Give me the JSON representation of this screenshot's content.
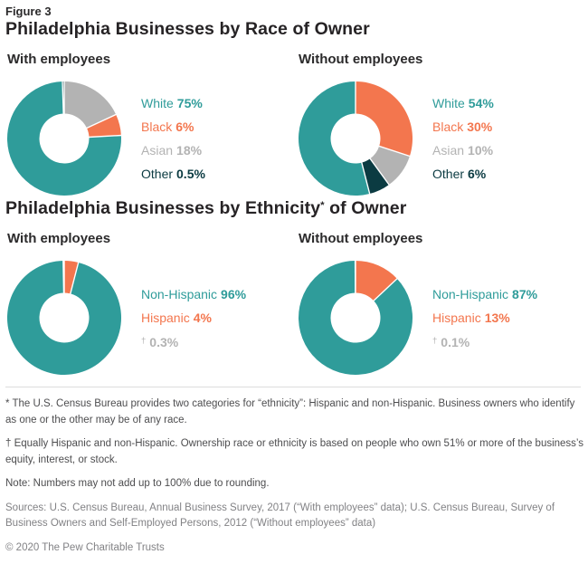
{
  "figure_label": "Figure 3",
  "palette": {
    "teal": "#2F9C9A",
    "orange": "#F3764E",
    "gray": "#B3B3B3",
    "dark": "#0B3B42"
  },
  "sections": {
    "race": {
      "title": "Philadelphia Businesses by Race of Owner"
    },
    "ethnicity": {
      "title_main": "Philadelphia Businesses by Ethnicity",
      "title_sup": "*",
      "title_rest": " of Owner"
    }
  },
  "chart_data": [
    {
      "type": "pie",
      "group": "race",
      "title": "With employees",
      "legend": [
        {
          "label": "White",
          "value": "75%",
          "color": "teal"
        },
        {
          "label": "Black",
          "value": "6%",
          "color": "orange"
        },
        {
          "label": "Asian",
          "value": "18%",
          "color": "gray"
        },
        {
          "label": "Other",
          "value": "0.5%",
          "color": "dark"
        }
      ],
      "slices": [
        {
          "label": "Asian",
          "value": 18,
          "color": "gray"
        },
        {
          "label": "Black",
          "value": 6,
          "color": "orange"
        },
        {
          "label": "White",
          "value": 75,
          "color": "teal"
        },
        {
          "label": "Other",
          "value": 0.5,
          "color": "dark"
        }
      ]
    },
    {
      "type": "pie",
      "group": "race",
      "title": "Without employees",
      "legend": [
        {
          "label": "White",
          "value": "54%",
          "color": "teal"
        },
        {
          "label": "Black",
          "value": "30%",
          "color": "orange"
        },
        {
          "label": "Asian",
          "value": "10%",
          "color": "gray"
        },
        {
          "label": "Other",
          "value": "6%",
          "color": "dark"
        }
      ],
      "slices": [
        {
          "label": "Black",
          "value": 30,
          "color": "orange"
        },
        {
          "label": "Asian",
          "value": 10,
          "color": "gray"
        },
        {
          "label": "Other",
          "value": 6,
          "color": "dark"
        },
        {
          "label": "White",
          "value": 54,
          "color": "teal"
        }
      ]
    },
    {
      "type": "pie",
      "group": "ethnicity",
      "title": "With employees",
      "legend": [
        {
          "label": "Non-Hispanic",
          "value": "96%",
          "color": "teal"
        },
        {
          "label": "Hispanic",
          "value": "4%",
          "color": "orange"
        },
        {
          "label": "†",
          "sup": true,
          "value": "0.3%",
          "color": "gray"
        }
      ],
      "slices": [
        {
          "label": "Hispanic",
          "value": 4,
          "color": "orange"
        },
        {
          "label": "Non-Hispanic",
          "value": 95.7,
          "color": "teal"
        },
        {
          "label": "Equally Hispanic and non-Hispanic",
          "value": 0.3,
          "color": "gray"
        }
      ]
    },
    {
      "type": "pie",
      "group": "ethnicity",
      "title": "Without employees",
      "legend": [
        {
          "label": "Non-Hispanic",
          "value": "87%",
          "color": "teal"
        },
        {
          "label": "Hispanic",
          "value": "13%",
          "color": "orange"
        },
        {
          "label": "†",
          "sup": true,
          "value": "0.1%",
          "color": "gray"
        }
      ],
      "slices": [
        {
          "label": "Hispanic",
          "value": 13,
          "color": "orange"
        },
        {
          "label": "Non-Hispanic",
          "value": 86.9,
          "color": "teal"
        },
        {
          "label": "Equally Hispanic and non-Hispanic",
          "value": 0.1,
          "color": "gray"
        }
      ]
    }
  ],
  "footnotes": {
    "asterisk": "* The U.S. Census Bureau provides two categories for “ethnicity”: Hispanic and non-Hispanic. Business owners who identify as one or the other may be of any race.",
    "dagger": "† Equally Hispanic and non-Hispanic. Ownership race or ethnicity is based on people who own 51% or more of the business’s equity, interest, or stock.",
    "note": "Note: Numbers may not add up to 100% due to rounding.",
    "sources": "Sources: U.S. Census Bureau, Annual Business Survey, 2017 (“With employees” data); U.S. Census Bureau, Survey of Business Owners and Self-Employed Persons, 2012 (“Without employees” data)",
    "copyright": "© 2020 The Pew Charitable Trusts"
  }
}
